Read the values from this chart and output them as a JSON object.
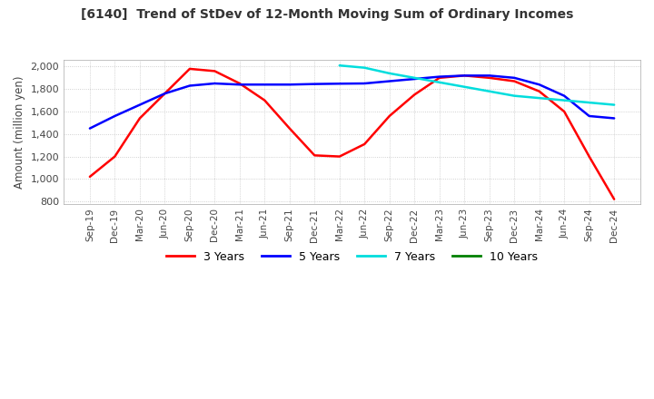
{
  "title": "[6140]  Trend of StDev of 12-Month Moving Sum of Ordinary Incomes",
  "ylabel": "Amount (million yen)",
  "background_color": "#ffffff",
  "grid_color": "#aaaaaa",
  "x_labels": [
    "Sep-19",
    "Dec-19",
    "Mar-20",
    "Jun-20",
    "Sep-20",
    "Dec-20",
    "Mar-21",
    "Jun-21",
    "Sep-21",
    "Dec-21",
    "Mar-22",
    "Jun-22",
    "Sep-22",
    "Dec-22",
    "Mar-23",
    "Jun-23",
    "Sep-23",
    "Dec-23",
    "Mar-24",
    "Jun-24",
    "Sep-24",
    "Dec-24"
  ],
  "series_3y": [
    1020,
    1200,
    1540,
    1760,
    1980,
    1960,
    1850,
    1700,
    1450,
    1210,
    1200,
    1310,
    1560,
    1750,
    1900,
    1920,
    1900,
    1870,
    1780,
    1600,
    1200,
    820
  ],
  "series_5y": [
    1450,
    1560,
    1660,
    1760,
    1830,
    1850,
    1840,
    1840,
    1840,
    1845,
    1848,
    1850,
    1870,
    1890,
    1910,
    1920,
    1920,
    1900,
    1840,
    1740,
    1560,
    1540
  ],
  "series_7y": [
    null,
    null,
    null,
    null,
    null,
    null,
    null,
    null,
    null,
    null,
    2010,
    1990,
    1940,
    1900,
    1860,
    1820,
    1780,
    1740,
    1720,
    1700,
    1680,
    1660
  ],
  "series_10y": [
    null,
    null,
    null,
    null,
    null,
    null,
    null,
    null,
    null,
    null,
    null,
    null,
    null,
    null,
    null,
    null,
    null,
    null,
    null,
    null,
    null,
    null
  ],
  "colors": {
    "3 Years": "#ff0000",
    "5 Years": "#0000ff",
    "7 Years": "#00dddd",
    "10 Years": "#008000"
  }
}
